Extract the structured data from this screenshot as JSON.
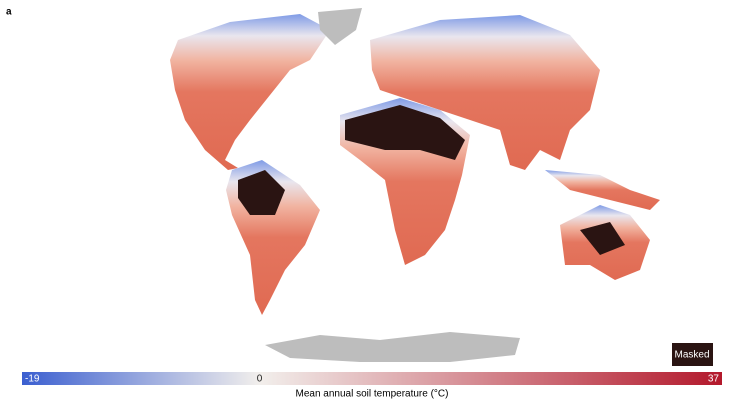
{
  "panel_label": "a",
  "colorbar": {
    "label": "Mean annual soil temperature (°C)",
    "range": [
      -19,
      37
    ],
    "ticks": [
      -19,
      0,
      37
    ],
    "colors": {
      "cold": "#3b5fd0",
      "neutral": "#f2efec",
      "hot": "#b3182b"
    }
  },
  "legend": {
    "masked": "Masked",
    "masked_color": "#2a1412"
  }
}
